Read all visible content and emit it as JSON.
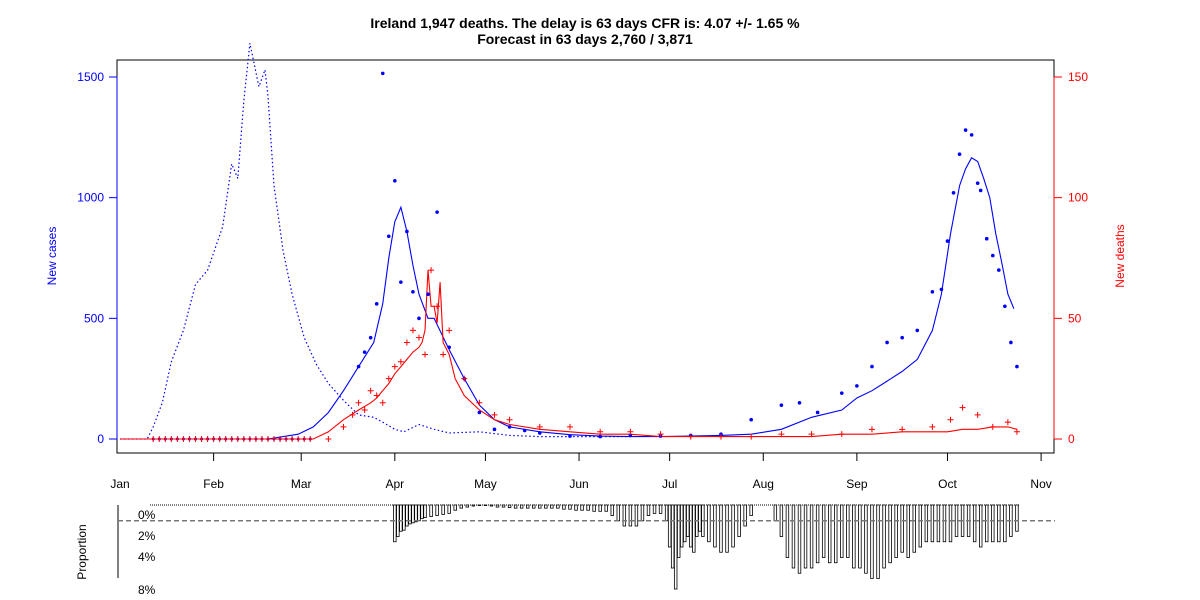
{
  "chart_data": {
    "type": "line",
    "title": "Ireland 1,947 deaths. The delay is 63 days CFR is: 4.07 +/- 1.65 %",
    "subtitle": "Forecast in 63 days 2,760 / 3,871",
    "ylabel_left": "New cases",
    "ylabel_right": "New deaths",
    "ylim_left": [
      0,
      1550
    ],
    "ylim_right": [
      0,
      155
    ],
    "yticks_left": [
      "0",
      "500",
      "1000",
      "1500"
    ],
    "yticks_right": [
      "0",
      "50",
      "100",
      "150"
    ],
    "months": [
      "Jan",
      "Feb",
      "Mar",
      "Apr",
      "May",
      "Jun",
      "Jul",
      "Aug",
      "Sep",
      "Oct",
      "Nov"
    ],
    "xunit": "day of year 2020 (1 = Jan 1)",
    "colors": {
      "cases": "#0000ff",
      "deaths": "#ff0000",
      "frame": "#000000",
      "ref": "#777777"
    },
    "series": [
      {
        "name": "New cases",
        "axis": "left",
        "style": "points",
        "x": [
          80,
          82,
          84,
          86,
          88,
          90,
          92,
          94,
          96,
          98,
          100,
          103,
          106,
          110,
          115,
          120,
          125,
          130,
          135,
          140,
          150,
          160,
          170,
          180,
          190,
          200,
          210,
          220,
          226,
          232,
          240,
          245,
          250,
          255,
          260,
          265,
          270,
          273,
          275,
          277,
          279,
          281,
          283,
          285,
          286,
          288,
          290,
          292,
          294,
          296,
          298
        ],
        "y": [
          300,
          360,
          420,
          560,
          1515,
          840,
          1070,
          650,
          860,
          610,
          500,
          600,
          940,
          380,
          250,
          110,
          40,
          50,
          35,
          25,
          12,
          10,
          15,
          12,
          15,
          20,
          80,
          140,
          150,
          110,
          190,
          220,
          300,
          400,
          420,
          450,
          610,
          620,
          820,
          1020,
          1180,
          1280,
          1260,
          1060,
          1030,
          830,
          760,
          700,
          550,
          400,
          300
        ]
      },
      {
        "name": "New cases smoothed",
        "axis": "left",
        "style": "line",
        "x": [
          1,
          50,
          60,
          65,
          70,
          75,
          80,
          85,
          88,
          90,
          92,
          94,
          96,
          98,
          100,
          103,
          105,
          110,
          115,
          120,
          125,
          130,
          140,
          150,
          160,
          170,
          180,
          190,
          200,
          210,
          220,
          230,
          240,
          245,
          250,
          255,
          260,
          265,
          270,
          273,
          276,
          279,
          281,
          283,
          285,
          287,
          289,
          291,
          293,
          295,
          297
        ],
        "y": [
          0,
          0,
          20,
          50,
          110,
          200,
          300,
          400,
          560,
          750,
          900,
          960,
          860,
          720,
          600,
          500,
          500,
          370,
          250,
          140,
          80,
          50,
          30,
          18,
          12,
          10,
          10,
          12,
          15,
          20,
          40,
          90,
          120,
          170,
          200,
          240,
          280,
          330,
          450,
          600,
          850,
          1050,
          1120,
          1165,
          1150,
          1080,
          1000,
          850,
          730,
          600,
          540
        ]
      },
      {
        "name": "Dotted reference",
        "axis": "left",
        "style": "dotted",
        "x": [
          1,
          10,
          12,
          15,
          18,
          22,
          26,
          30,
          35,
          38,
          40,
          42,
          44,
          47,
          49,
          50,
          52,
          55,
          58,
          62,
          66,
          70,
          75,
          80,
          85,
          88,
          92,
          95,
          100,
          105,
          110,
          120,
          130,
          140,
          150,
          160,
          170
        ],
        "y": [
          0,
          0,
          50,
          150,
          320,
          450,
          640,
          700,
          880,
          1140,
          1080,
          1400,
          1640,
          1460,
          1530,
          1420,
          1050,
          780,
          600,
          420,
          310,
          230,
          160,
          100,
          90,
          70,
          40,
          30,
          60,
          40,
          25,
          30,
          15,
          10,
          10,
          10,
          10
        ]
      },
      {
        "name": "New deaths",
        "axis": "right",
        "style": "crosses",
        "x": [
          70,
          75,
          78,
          80,
          82,
          84,
          86,
          88,
          90,
          92,
          94,
          96,
          98,
          100,
          102,
          104,
          106,
          108,
          110,
          115,
          120,
          125,
          130,
          140,
          150,
          160,
          170,
          180,
          190,
          200,
          210,
          220,
          230,
          240,
          250,
          260,
          270,
          276,
          280,
          285,
          290,
          295,
          298
        ],
        "y": [
          0,
          5,
          10,
          15,
          12,
          20,
          18,
          15,
          25,
          30,
          32,
          40,
          45,
          42,
          35,
          70,
          55,
          35,
          45,
          25,
          15,
          10,
          8,
          5,
          5,
          3,
          3,
          2,
          1,
          1,
          1,
          2,
          2,
          2,
          4,
          4,
          5,
          8,
          13,
          10,
          5,
          7,
          3
        ]
      },
      {
        "name": "New deaths smoothed",
        "axis": "right",
        "style": "line",
        "x": [
          1,
          65,
          70,
          75,
          80,
          84,
          86,
          88,
          90,
          92,
          94,
          96,
          98,
          100,
          101,
          102,
          103,
          104,
          105,
          106,
          107,
          108,
          110,
          112,
          115,
          120,
          125,
          130,
          140,
          150,
          160,
          170,
          180,
          190,
          200,
          210,
          220,
          230,
          240,
          250,
          260,
          270,
          275,
          280,
          285,
          290,
          295,
          298
        ],
        "y": [
          0,
          0,
          3,
          8,
          12,
          15,
          17,
          20,
          23,
          27,
          30,
          33,
          36,
          38,
          40,
          45,
          70,
          55,
          55,
          48,
          65,
          40,
          35,
          25,
          18,
          12,
          8,
          6,
          4,
          3,
          2,
          2,
          1,
          1,
          1,
          1,
          1,
          1,
          2,
          2,
          3,
          3,
          3,
          4,
          4,
          5,
          5,
          4
        ]
      }
    ],
    "proportion_panel": {
      "ylabel": "Proportion",
      "ticks": [
        "0%",
        "2%",
        "4%",
        "8%"
      ],
      "reference_line": 1.5,
      "bars": {
        "x": [
          92,
          93,
          94,
          95,
          96,
          97,
          98,
          99,
          100,
          101,
          102,
          104,
          106,
          108,
          110,
          112,
          114,
          116,
          118,
          120,
          122,
          124,
          126,
          128,
          130,
          132,
          134,
          136,
          138,
          140,
          142,
          144,
          146,
          148,
          150,
          152,
          154,
          156,
          158,
          160,
          162,
          164,
          166,
          168,
          170,
          172,
          174,
          176,
          178,
          180,
          182,
          183,
          184,
          185,
          186,
          187,
          188,
          189,
          190,
          191,
          192,
          193,
          194,
          196,
          198,
          200,
          202,
          204,
          206,
          208,
          210,
          218,
          220,
          222,
          224,
          226,
          228,
          230,
          232,
          234,
          236,
          238,
          240,
          242,
          244,
          246,
          248,
          250,
          252,
          254,
          256,
          258,
          260,
          262,
          264,
          266,
          268,
          270,
          272,
          274,
          276,
          278,
          280,
          282,
          284,
          286,
          288,
          290,
          292,
          294,
          296,
          298
        ],
        "y": [
          3.5,
          3.0,
          2.5,
          2.4,
          2.0,
          1.8,
          1.7,
          1.6,
          1.5,
          1.3,
          1.2,
          1.1,
          1.0,
          0.9,
          0.8,
          0.5,
          0.3,
          0.2,
          0.1,
          0.05,
          0.05,
          0.1,
          0.2,
          0.2,
          0.25,
          0.3,
          0.3,
          0.3,
          0.3,
          0.3,
          0.3,
          0.3,
          0.3,
          0.4,
          0.4,
          0.5,
          0.5,
          0.5,
          0.6,
          0.6,
          0.6,
          1.0,
          1.5,
          2.0,
          2.0,
          2.0,
          1.5,
          1.0,
          0.8,
          0.8,
          1.5,
          4.0,
          6.0,
          8.0,
          5.0,
          4.0,
          3.5,
          3.0,
          4.0,
          4.5,
          3.0,
          2.5,
          3.0,
          3.5,
          4.0,
          4.5,
          4.5,
          4.0,
          3.0,
          2.0,
          1.0,
          1.5,
          3.0,
          5.0,
          6.0,
          6.5,
          6.0,
          6.0,
          5.5,
          5.0,
          5.5,
          5.5,
          5.0,
          5.0,
          6.0,
          6.0,
          6.5,
          7.0,
          7.0,
          6.0,
          5.5,
          5.0,
          4.5,
          5.0,
          4.5,
          4.0,
          3.5,
          3.5,
          3.5,
          3.5,
          3.5,
          3.0,
          3.0,
          3.0,
          3.5,
          4.0,
          3.5,
          3.5,
          3.5,
          3.5,
          3.0,
          2.5
        ]
      }
    }
  }
}
